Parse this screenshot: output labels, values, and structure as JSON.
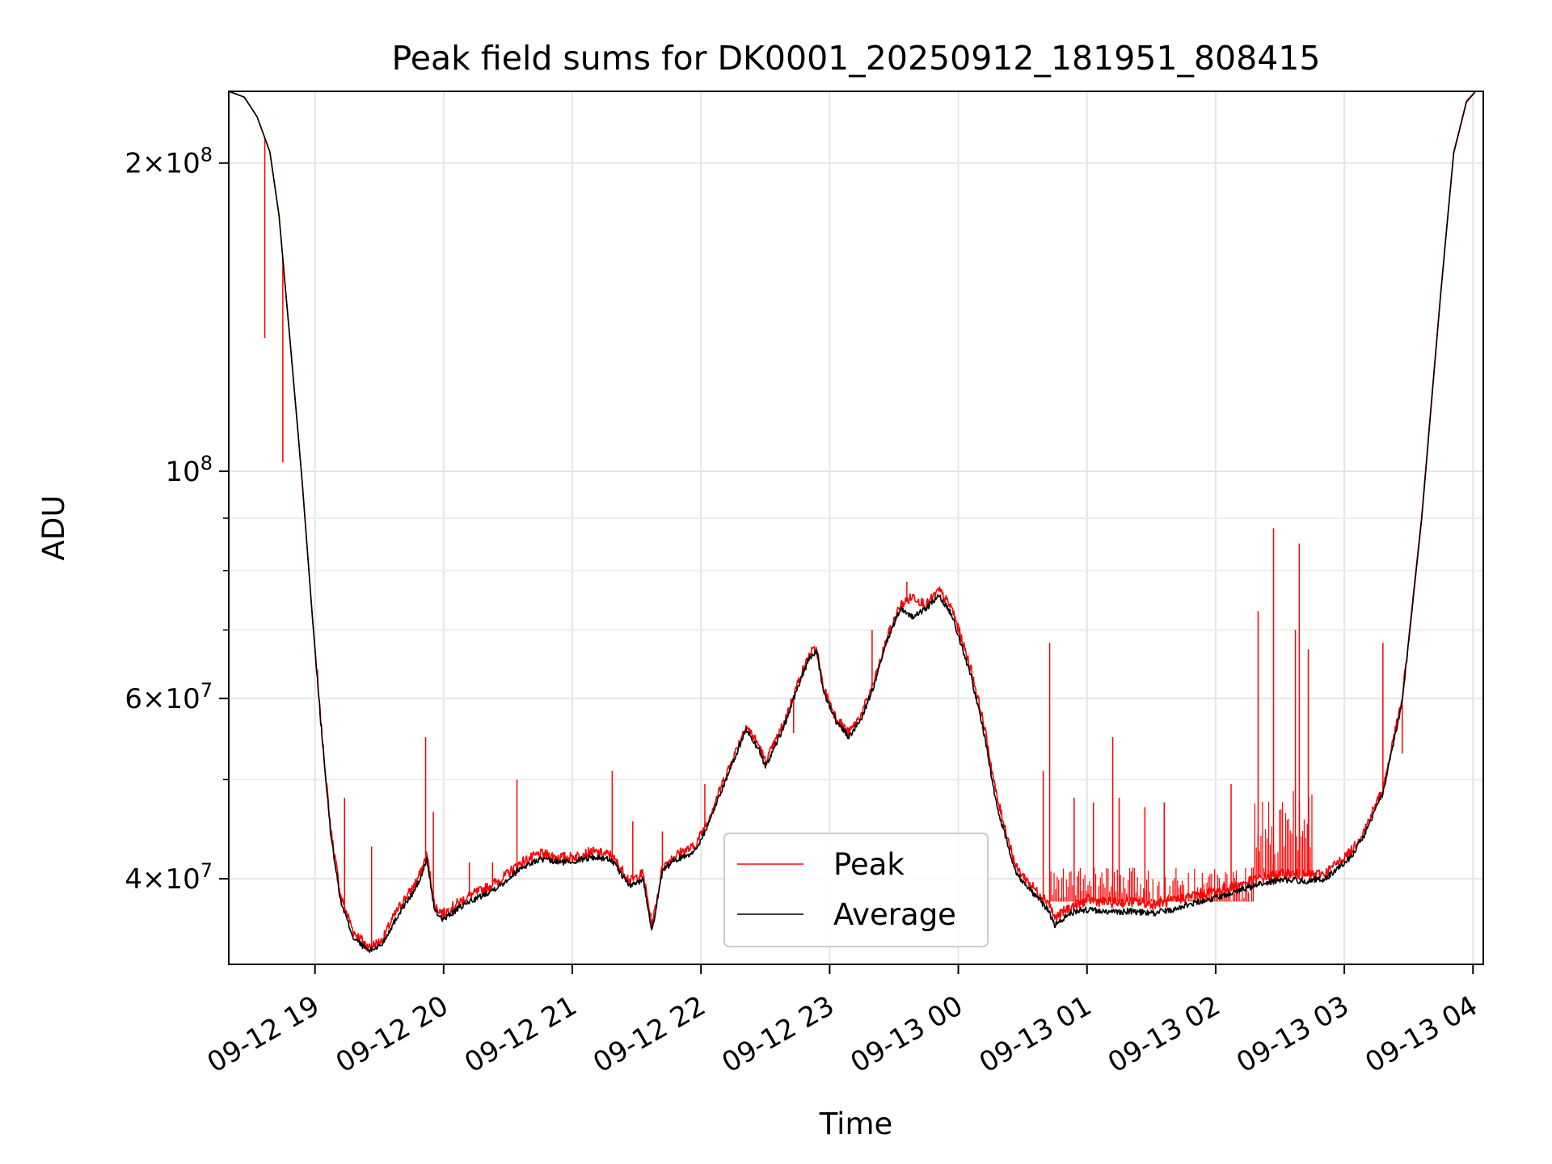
{
  "chart_data": {
    "type": "line",
    "title": "Peak field sums for DK0001_20250912_181951_808415",
    "xlabel": "Time",
    "ylabel": "ADU",
    "yscale": "log",
    "ylim": [
      33000000,
      235000000
    ],
    "xlim": [
      "09-12 18:19:51",
      "09-13 04:05:00"
    ],
    "grid": true,
    "legend_position": "lower-center",
    "x_ticks": [
      "09-12 19",
      "09-12 20",
      "09-12 21",
      "09-12 22",
      "09-12 23",
      "09-13 00",
      "09-13 01",
      "09-13 02",
      "09-13 03",
      "09-13 04"
    ],
    "y_ticks": [
      {
        "value": 200000000,
        "base": "2×10",
        "exp": "8"
      },
      {
        "value": 100000000,
        "base": "10",
        "exp": "8"
      },
      {
        "value": 60000000,
        "base": "6×10",
        "exp": "7"
      },
      {
        "value": 40000000,
        "base": "4×10",
        "exp": "7"
      }
    ],
    "y_minor_ticks": [
      50000000,
      70000000,
      80000000,
      90000000
    ],
    "series": [
      {
        "name": "Peak",
        "color": "#ff0000",
        "note": "x in hours after 09-12 18:00",
        "x": [
          0.33,
          0.45,
          0.55,
          0.65,
          0.72,
          0.8,
          0.9,
          0.98,
          1.05,
          1.12,
          1.2,
          1.3,
          1.42,
          1.52,
          1.6,
          1.68,
          1.75,
          1.82,
          1.87,
          1.93,
          2.0,
          2.1,
          2.2,
          2.3,
          2.45,
          2.6,
          2.75,
          2.9,
          3.0,
          3.15,
          3.3,
          3.45,
          3.55,
          3.62,
          3.7,
          3.78,
          3.85,
          3.95,
          4.05,
          4.15,
          4.25,
          4.35,
          4.45,
          4.5,
          4.55,
          4.65,
          4.75,
          4.85,
          4.9,
          4.95,
          5.05,
          5.15,
          5.25,
          5.35,
          5.45,
          5.55,
          5.65,
          5.75,
          5.85,
          5.95,
          6.1,
          6.2,
          6.3,
          6.45,
          6.6,
          6.7,
          6.75,
          6.85,
          6.95,
          7.0,
          7.1,
          7.2,
          7.35,
          7.5,
          7.65,
          7.8,
          7.95,
          8.1,
          8.25,
          8.4,
          8.55,
          8.7,
          8.85,
          8.95,
          9.05,
          9.15,
          9.3,
          9.45,
          9.6,
          9.75,
          9.85,
          9.95,
          10.02
        ],
        "y": [
          235000000,
          232000000,
          222000000,
          205000000,
          178000000,
          137000000,
          98000000,
          72000000,
          56000000,
          45000000,
          38500000,
          35500000,
          34300000,
          34800000,
          36500000,
          38000000,
          39000000,
          40500000,
          42300000,
          37600000,
          37000000,
          37800000,
          38500000,
          39000000,
          40000000,
          41500000,
          42300000,
          42000000,
          42000000,
          42500000,
          42200000,
          39800000,
          40500000,
          36000000,
          41000000,
          42000000,
          42500000,
          43000000,
          45500000,
          49000000,
          52500000,
          56500000,
          54000000,
          52000000,
          53500000,
          57000000,
          62000000,
          66500000,
          67000000,
          61500000,
          57500000,
          55500000,
          58000000,
          62500000,
          69000000,
          74000000,
          75500000,
          74000000,
          76500000,
          73500000,
          64000000,
          56500000,
          48000000,
          41000000,
          39000000,
          38000000,
          36600000,
          37400000,
          37800000,
          38200000,
          38000000,
          37900000,
          38000000,
          37800000,
          38000000,
          38500000,
          38800000,
          39200000,
          39700000,
          40200000,
          40500000,
          40300000,
          40500000,
          41500000,
          42500000,
          44500000,
          49000000,
          60000000,
          90000000,
          150000000,
          205000000,
          230000000,
          235000000
        ]
      },
      {
        "name": "Average",
        "color": "#000000",
        "note": "x in hours after 09-12 18:00",
        "x": [
          0.33,
          0.45,
          0.55,
          0.65,
          0.72,
          0.8,
          0.9,
          0.98,
          1.05,
          1.12,
          1.2,
          1.3,
          1.42,
          1.52,
          1.6,
          1.68,
          1.75,
          1.82,
          1.87,
          1.93,
          2.0,
          2.1,
          2.2,
          2.3,
          2.45,
          2.6,
          2.75,
          2.9,
          3.0,
          3.15,
          3.3,
          3.45,
          3.55,
          3.62,
          3.7,
          3.78,
          3.85,
          3.95,
          4.05,
          4.15,
          4.25,
          4.35,
          4.45,
          4.5,
          4.55,
          4.65,
          4.75,
          4.85,
          4.9,
          4.95,
          5.05,
          5.15,
          5.25,
          5.35,
          5.45,
          5.55,
          5.65,
          5.75,
          5.85,
          5.95,
          6.1,
          6.2,
          6.3,
          6.45,
          6.6,
          6.7,
          6.75,
          6.85,
          6.95,
          7.0,
          7.1,
          7.2,
          7.35,
          7.5,
          7.65,
          7.8,
          7.95,
          8.1,
          8.25,
          8.4,
          8.55,
          8.7,
          8.85,
          8.95,
          9.05,
          9.15,
          9.3,
          9.45,
          9.6,
          9.75,
          9.85,
          9.95,
          10.02
        ],
        "y": [
          235000000,
          232000000,
          222000000,
          205000000,
          178000000,
          137000000,
          98000000,
          72000000,
          56000000,
          44500000,
          38000000,
          35000000,
          34000000,
          34500000,
          36000000,
          37500000,
          38500000,
          40000000,
          41800000,
          37200000,
          36500000,
          37300000,
          38000000,
          38500000,
          39500000,
          41000000,
          41800000,
          41500000,
          41600000,
          42000000,
          41800000,
          39300000,
          40000000,
          35600000,
          40600000,
          41600000,
          42000000,
          42500000,
          45000000,
          48500000,
          52000000,
          56000000,
          53500000,
          51500000,
          53000000,
          56500000,
          61500000,
          66000000,
          66500000,
          61000000,
          57000000,
          55000000,
          57500000,
          62000000,
          68500000,
          73500000,
          72000000,
          73500000,
          75500000,
          72500000,
          63000000,
          55500000,
          47000000,
          40500000,
          38500000,
          37300000,
          36000000,
          36900000,
          37300000,
          37300000,
          37200000,
          37100000,
          37200000,
          37000000,
          37300000,
          37800000,
          38200000,
          38700000,
          39200000,
          39700000,
          39900000,
          39800000,
          40000000,
          41000000,
          42000000,
          44000000,
          48500000,
          59500000,
          89500000,
          149500000,
          204500000,
          229500000,
          235000000
        ]
      }
    ],
    "peak_spikes": [
      {
        "x": 0.61,
        "y": 135000000
      },
      {
        "x": 0.75,
        "y": 102000000
      },
      {
        "x": 1.02,
        "y": 64000000
      },
      {
        "x": 1.23,
        "y": 48000000
      },
      {
        "x": 1.44,
        "y": 43000000
      },
      {
        "x": 1.86,
        "y": 55000000
      },
      {
        "x": 1.92,
        "y": 46500000
      },
      {
        "x": 2.2,
        "y": 41500000
      },
      {
        "x": 2.38,
        "y": 41500000
      },
      {
        "x": 2.57,
        "y": 50000000
      },
      {
        "x": 3.31,
        "y": 51000000
      },
      {
        "x": 3.47,
        "y": 45500000
      },
      {
        "x": 3.7,
        "y": 44500000
      },
      {
        "x": 4.03,
        "y": 49500000
      },
      {
        "x": 4.5,
        "y": 52000000
      },
      {
        "x": 4.72,
        "y": 55500000
      },
      {
        "x": 5.33,
        "y": 70000000
      },
      {
        "x": 5.6,
        "y": 78000000
      },
      {
        "x": 6.12,
        "y": 63000000
      },
      {
        "x": 6.66,
        "y": 51000000
      },
      {
        "x": 6.71,
        "y": 68000000
      },
      {
        "x": 6.9,
        "y": 48000000
      },
      {
        "x": 7.05,
        "y": 47500000
      },
      {
        "x": 7.2,
        "y": 55000000
      },
      {
        "x": 7.25,
        "y": 48000000
      },
      {
        "x": 7.45,
        "y": 47000000
      },
      {
        "x": 7.6,
        "y": 47500000
      },
      {
        "x": 8.12,
        "y": 49500000
      },
      {
        "x": 8.33,
        "y": 73000000
      },
      {
        "x": 8.45,
        "y": 88000000
      },
      {
        "x": 8.62,
        "y": 70000000
      },
      {
        "x": 8.65,
        "y": 85000000
      },
      {
        "x": 8.72,
        "y": 67000000
      },
      {
        "x": 9.3,
        "y": 68000000
      },
      {
        "x": 9.45,
        "y": 53000000
      }
    ]
  }
}
